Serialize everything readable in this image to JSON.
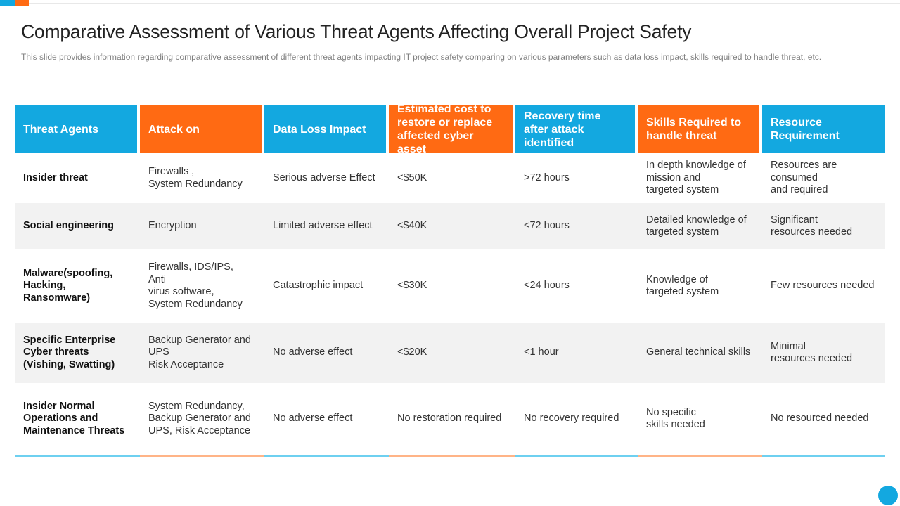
{
  "title": "Comparative Assessment of Various Threat Agents Affecting Overall Project Safety",
  "subtitle": "This slide provides information regarding comparative assessment of different threat agents impacting IT project safety comparing on various parameters such as data loss impact, skills required to handle threat, etc.",
  "colors": {
    "blue": "#13a8e0",
    "orange": "#ff6a13",
    "row_shade": "#f2f2f2"
  },
  "table": {
    "headers": [
      "Threat Agents",
      "Attack on",
      "Data Loss Impact",
      "Estimated cost to restore or replace affected cyber asset",
      "Recovery time after attack identified",
      "Skills Required to handle threat",
      "Resource Requirement"
    ],
    "rows": [
      [
        "Insider threat",
        "Firewalls ,\nSystem Redundancy",
        "Serious adverse Effect",
        "<$50K",
        ">72 hours",
        "In depth knowledge of\nmission and\ntargeted system",
        "Resources are\nconsumed\nand required"
      ],
      [
        "Social engineering",
        "Encryption",
        "Limited adverse effect",
        "<$40K",
        "<72 hours",
        "Detailed knowledge of\ntargeted system",
        "Significant\n resources needed"
      ],
      [
        "Malware(spoofing,\nHacking,\nRansomware)",
        "Firewalls, IDS/IPS, Anti\nvirus software,\nSystem Redundancy",
        "Catastrophic impact",
        "<$30K",
        "<24 hours",
        "Knowledge of\ntargeted system",
        "Few resources needed"
      ],
      [
        "Specific Enterprise\nCyber threats\n(Vishing,  Swatting)",
        "Backup Generator and\nUPS\nRisk Acceptance",
        "No adverse effect",
        "<$20K",
        "<1 hour",
        "General technical skills",
        "Minimal\nresources needed"
      ],
      [
        "Insider Normal\nOperations and\nMaintenance Threats",
        "System Redundancy,\nBackup Generator and\nUPS, Risk Acceptance",
        "No adverse effect",
        "No restoration required",
        "No recovery required",
        "No specific\nskills needed",
        "No resourced needed"
      ]
    ]
  }
}
